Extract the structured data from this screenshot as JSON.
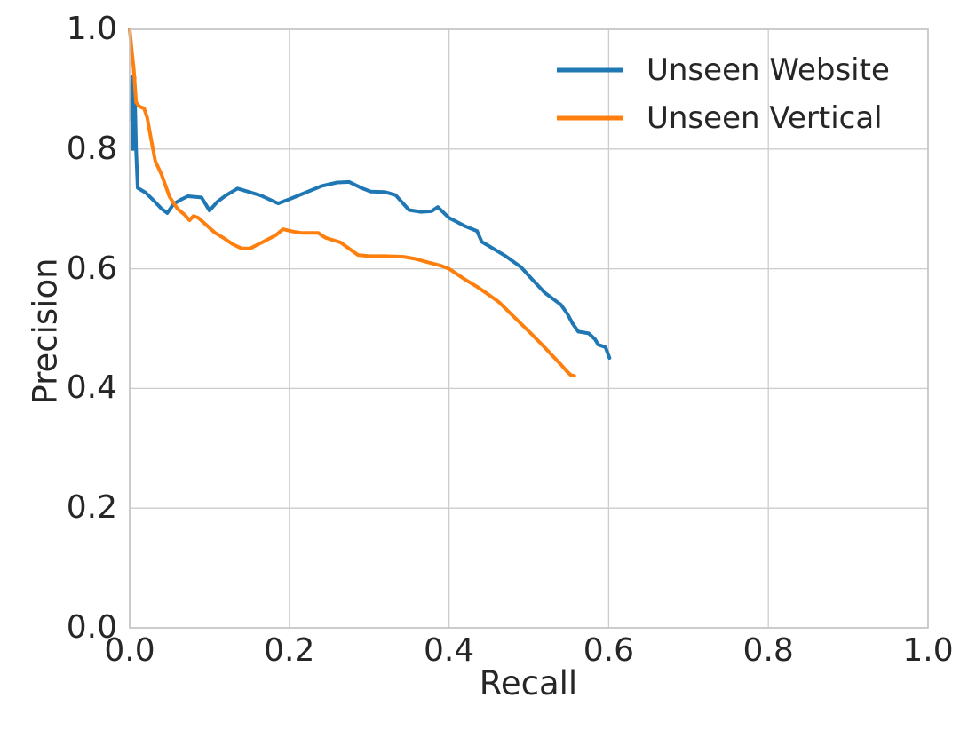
{
  "figure": {
    "background_color": "#ffffff",
    "text_color": "#262626",
    "grid_color": "#cccccc",
    "spine_color": "#c3c3c3"
  },
  "chart_data": {
    "type": "line",
    "title": "",
    "xlabel": "Recall",
    "ylabel": "Precision",
    "xlim": [
      0.0,
      1.0
    ],
    "ylim": [
      0.0,
      1.0
    ],
    "xticks": [
      "0.0",
      "0.2",
      "0.4",
      "0.6",
      "0.8",
      "1.0"
    ],
    "yticks": [
      "0.0",
      "0.2",
      "0.4",
      "0.6",
      "0.8",
      "1.0"
    ],
    "grid": true,
    "legend_position": "upper right",
    "series": [
      {
        "name": "Unseen Website",
        "color": "#1f77b4",
        "points": [
          [
            0.002,
            0.85
          ],
          [
            0.003,
            0.92
          ],
          [
            0.004,
            0.8
          ],
          [
            0.006,
            0.92
          ],
          [
            0.008,
            0.8
          ],
          [
            0.01,
            0.735
          ],
          [
            0.02,
            0.727
          ],
          [
            0.03,
            0.714
          ],
          [
            0.04,
            0.7
          ],
          [
            0.047,
            0.693
          ],
          [
            0.055,
            0.708
          ],
          [
            0.065,
            0.716
          ],
          [
            0.073,
            0.721
          ],
          [
            0.09,
            0.719
          ],
          [
            0.096,
            0.706
          ],
          [
            0.1,
            0.697
          ],
          [
            0.11,
            0.712
          ],
          [
            0.12,
            0.722
          ],
          [
            0.135,
            0.734
          ],
          [
            0.15,
            0.728
          ],
          [
            0.165,
            0.722
          ],
          [
            0.178,
            0.714
          ],
          [
            0.186,
            0.709
          ],
          [
            0.2,
            0.716
          ],
          [
            0.22,
            0.727
          ],
          [
            0.24,
            0.738
          ],
          [
            0.26,
            0.744
          ],
          [
            0.275,
            0.745
          ],
          [
            0.29,
            0.735
          ],
          [
            0.302,
            0.729
          ],
          [
            0.32,
            0.728
          ],
          [
            0.333,
            0.723
          ],
          [
            0.35,
            0.698
          ],
          [
            0.365,
            0.695
          ],
          [
            0.378,
            0.696
          ],
          [
            0.386,
            0.703
          ],
          [
            0.4,
            0.685
          ],
          [
            0.42,
            0.671
          ],
          [
            0.435,
            0.663
          ],
          [
            0.441,
            0.645
          ],
          [
            0.45,
            0.638
          ],
          [
            0.47,
            0.622
          ],
          [
            0.49,
            0.603
          ],
          [
            0.505,
            0.581
          ],
          [
            0.52,
            0.56
          ],
          [
            0.535,
            0.545
          ],
          [
            0.54,
            0.54
          ],
          [
            0.548,
            0.525
          ],
          [
            0.555,
            0.508
          ],
          [
            0.562,
            0.495
          ],
          [
            0.575,
            0.492
          ],
          [
            0.583,
            0.482
          ],
          [
            0.587,
            0.473
          ],
          [
            0.596,
            0.469
          ],
          [
            0.601,
            0.451
          ]
        ]
      },
      {
        "name": "Unseen Vertical",
        "color": "#ff7f0e",
        "points": [
          [
            0.0,
            1.0
          ],
          [
            0.003,
            0.96
          ],
          [
            0.005,
            0.935
          ],
          [
            0.008,
            0.878
          ],
          [
            0.012,
            0.871
          ],
          [
            0.018,
            0.868
          ],
          [
            0.022,
            0.852
          ],
          [
            0.027,
            0.815
          ],
          [
            0.032,
            0.78
          ],
          [
            0.04,
            0.757
          ],
          [
            0.05,
            0.72
          ],
          [
            0.06,
            0.7
          ],
          [
            0.069,
            0.69
          ],
          [
            0.075,
            0.681
          ],
          [
            0.08,
            0.688
          ],
          [
            0.086,
            0.685
          ],
          [
            0.096,
            0.673
          ],
          [
            0.107,
            0.66
          ],
          [
            0.118,
            0.651
          ],
          [
            0.129,
            0.641
          ],
          [
            0.14,
            0.634
          ],
          [
            0.151,
            0.634
          ],
          [
            0.166,
            0.644
          ],
          [
            0.183,
            0.656
          ],
          [
            0.192,
            0.666
          ],
          [
            0.205,
            0.662
          ],
          [
            0.215,
            0.66
          ],
          [
            0.236,
            0.66
          ],
          [
            0.245,
            0.652
          ],
          [
            0.264,
            0.644
          ],
          [
            0.286,
            0.623
          ],
          [
            0.3,
            0.621
          ],
          [
            0.32,
            0.621
          ],
          [
            0.343,
            0.62
          ],
          [
            0.356,
            0.617
          ],
          [
            0.373,
            0.611
          ],
          [
            0.39,
            0.605
          ],
          [
            0.4,
            0.6
          ],
          [
            0.42,
            0.582
          ],
          [
            0.435,
            0.57
          ],
          [
            0.447,
            0.559
          ],
          [
            0.462,
            0.545
          ],
          [
            0.481,
            0.52
          ],
          [
            0.501,
            0.494
          ],
          [
            0.518,
            0.471
          ],
          [
            0.53,
            0.454
          ],
          [
            0.54,
            0.44
          ],
          [
            0.548,
            0.428
          ],
          [
            0.553,
            0.422
          ],
          [
            0.557,
            0.421
          ]
        ]
      }
    ]
  }
}
